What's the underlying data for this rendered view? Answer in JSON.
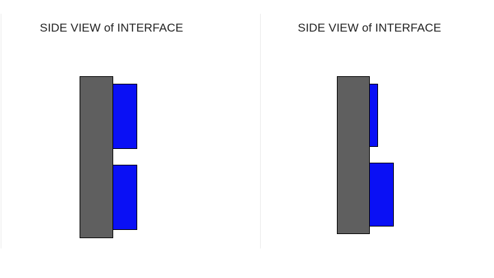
{
  "panels": [
    {
      "title": "SIDE VIEW of INTERFACE"
    },
    {
      "title": "SIDE VIEW of INTERFACE"
    }
  ],
  "colors": {
    "substrate": "#5f5f5f",
    "pad": "#0a10f5",
    "outline": "#000000"
  }
}
